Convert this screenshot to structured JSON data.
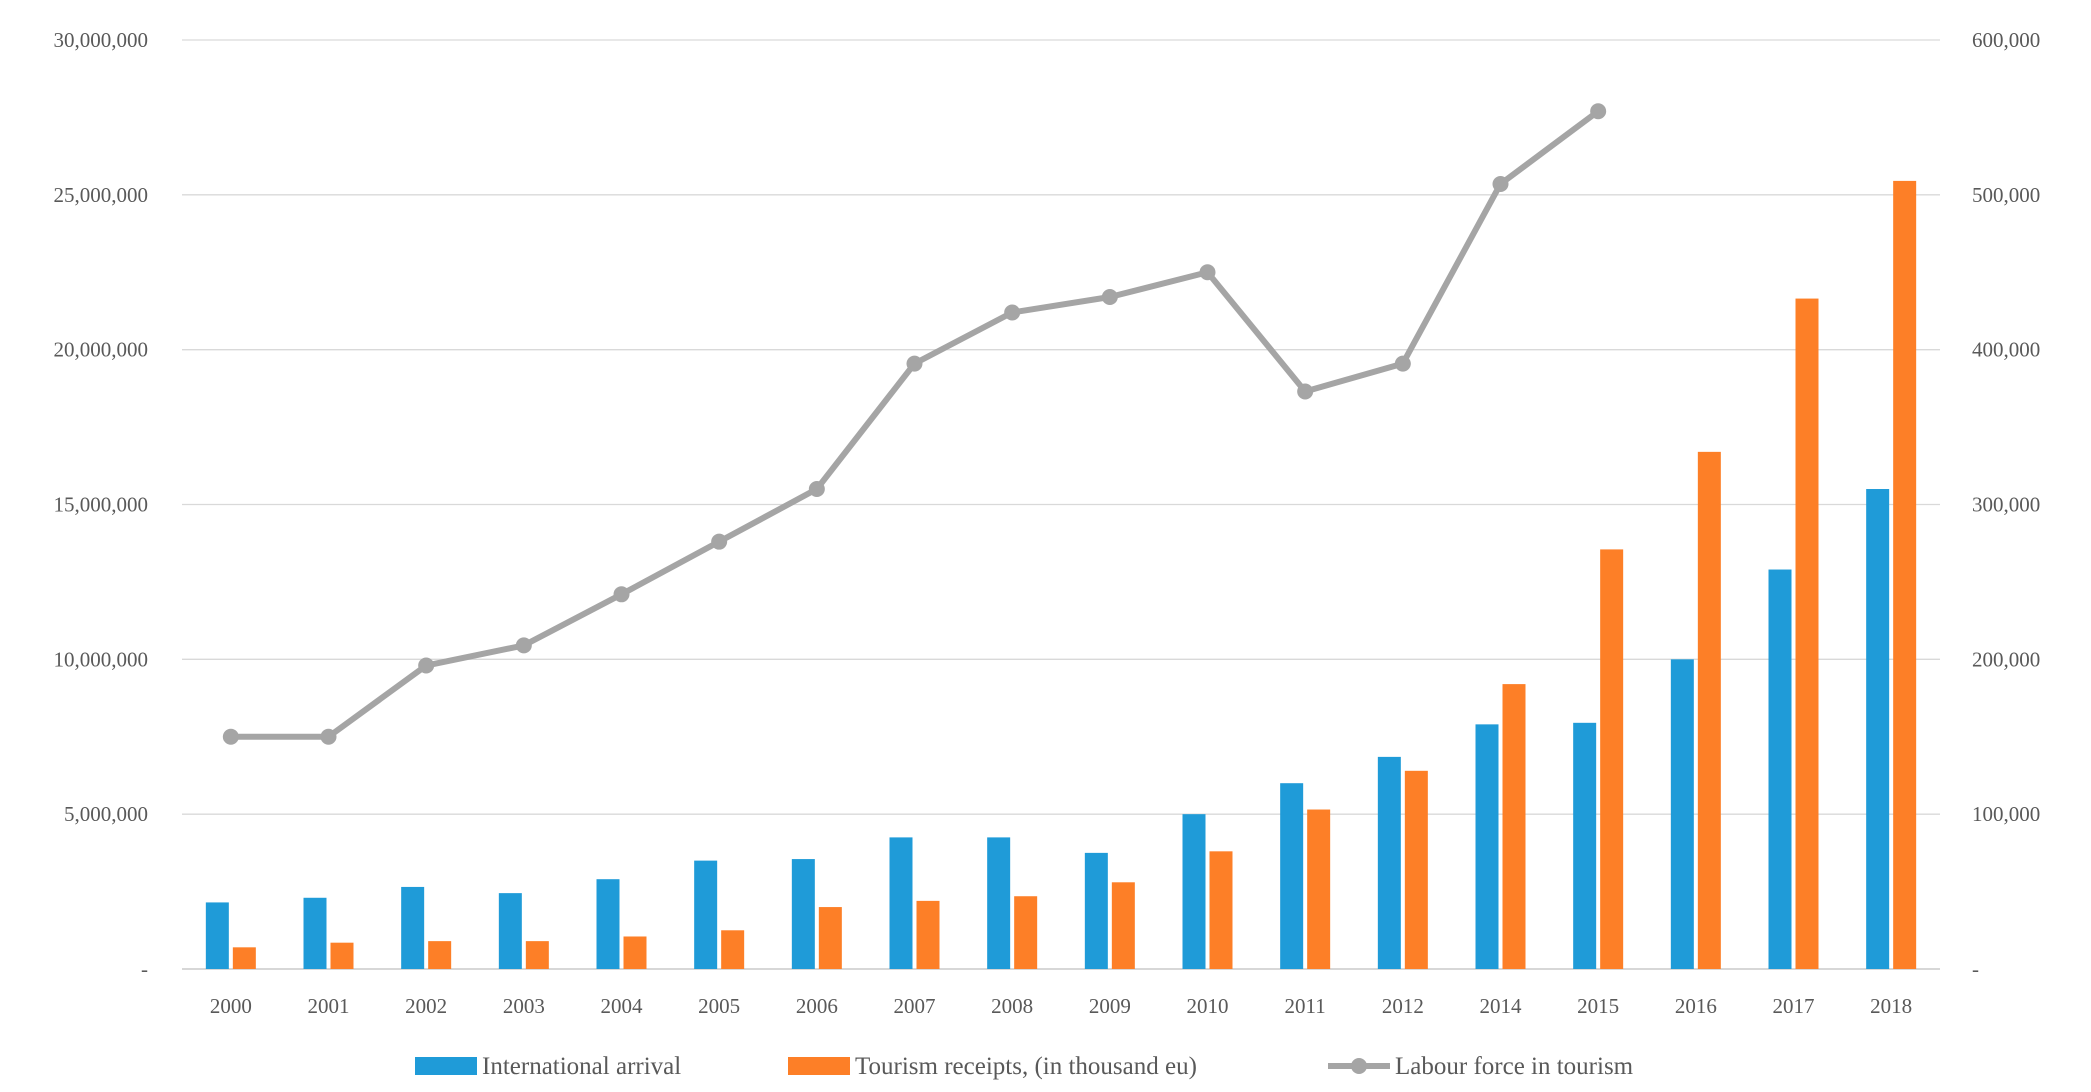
{
  "chart_data": {
    "type": "bar",
    "categories": [
      "2000",
      "2001",
      "2002",
      "2003",
      "2004",
      "2005",
      "2006",
      "2007",
      "2008",
      "2009",
      "2010",
      "2011",
      "2012",
      "2014",
      "2015",
      "2016",
      "2017",
      "2018"
    ],
    "ylim": [
      0,
      30000000
    ],
    "y2lim": [
      0,
      600000
    ],
    "yticks": [
      "-",
      "5,000,000",
      "10,000,000",
      "15,000,000",
      "20,000,000",
      "25,000,000",
      "30,000,000"
    ],
    "y2ticks": [
      "-",
      "100,000",
      "200,000",
      "300,000",
      "400,000",
      "500,000",
      "600,000"
    ],
    "grid": true,
    "legend_position": "bottom",
    "series": [
      {
        "name": "International arrival",
        "kind": "bar",
        "axis": "left",
        "color": "#1f9bd8",
        "values": [
          2150000,
          2300000,
          2650000,
          2450000,
          2900000,
          3500000,
          3550000,
          4250000,
          4250000,
          3750000,
          5000000,
          6000000,
          6850000,
          7900000,
          7950000,
          10000000,
          12900000,
          15500000
        ]
      },
      {
        "name": "Tourism receipts, (in thousand eu)",
        "kind": "bar",
        "axis": "left",
        "color": "#fd7f27",
        "values": [
          700000,
          850000,
          900000,
          900000,
          1050000,
          1250000,
          2000000,
          2200000,
          2350000,
          2800000,
          3800000,
          5150000,
          6400000,
          9200000,
          13550000,
          16700000,
          21650000,
          25450000
        ]
      },
      {
        "name": "Labour force in tourism",
        "kind": "line",
        "axis": "right",
        "color": "#a5a5a5",
        "values": [
          150000,
          150000,
          196000,
          209000,
          242000,
          276000,
          310000,
          391000,
          424000,
          434000,
          450000,
          373000,
          391000,
          507000,
          554000,
          null,
          null,
          null
        ]
      }
    ]
  }
}
